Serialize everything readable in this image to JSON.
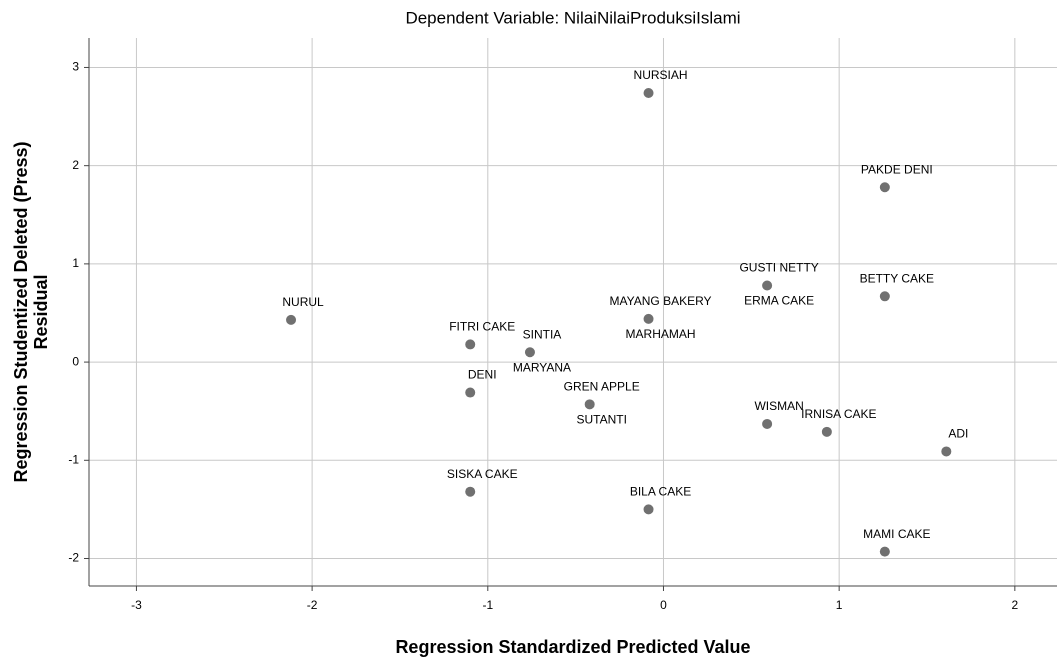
{
  "chart_data": {
    "type": "scatter",
    "title": "Dependent Variable: NilaiNilaiProduksiIslami",
    "xlabel": "Regression Standardized Predicted Value",
    "ylabel": [
      "Regression Studentized Deleted (Press)",
      "Residual"
    ],
    "point_labels": [
      "NURSIAH",
      "PAKDE DENI",
      "GUSTI NETTY",
      "ERMA CAKE",
      "BETTY CAKE",
      "NURUL",
      "MAYANG BAKERY",
      "MARHAMAH",
      "FITRI CAKE",
      "SINTIA",
      "MARYANA",
      "DENI",
      "GREN APPLE",
      "SUTANTI",
      "WISMAN",
      "IRNISA CAKE",
      "ADI",
      "SISKA CAKE",
      "BILA CAKE",
      "MAMI CAKE"
    ],
    "x": [
      -0.085,
      1.26,
      0.59,
      0.59,
      1.26,
      -2.12,
      -0.085,
      -0.085,
      -1.1,
      -0.76,
      -0.76,
      -1.1,
      -0.42,
      -0.42,
      0.59,
      0.93,
      1.61,
      -1.1,
      -0.085,
      1.26
    ],
    "values": [
      2.74,
      1.78,
      0.78,
      0.78,
      0.67,
      0.43,
      0.44,
      0.44,
      0.18,
      0.1,
      0.1,
      -0.31,
      -0.43,
      -0.43,
      -0.63,
      -0.71,
      -0.91,
      -1.32,
      -1.5,
      -1.93
    ],
    "color": "#707070",
    "xlim": [
      -3.27,
      2.24
    ],
    "xticks": [
      -3,
      -2,
      -1,
      0,
      1,
      2
    ],
    "ylim": [
      -2.28,
      3.3
    ],
    "yticks": [
      -2,
      -1,
      0,
      1,
      2,
      3
    ],
    "grid": true
  }
}
